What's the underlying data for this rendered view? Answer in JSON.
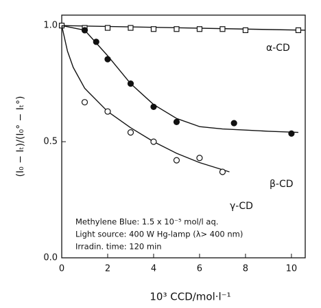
{
  "chart_data": {
    "type": "scatter",
    "x_label": "10³ CCD/mol·l⁻¹",
    "y_label": "(I₀ − Iₜ)/(I₀° − Iₜ°)",
    "xlim": [
      0,
      10.6
    ],
    "ylim": [
      0,
      1.045
    ],
    "xticks": [
      0,
      2,
      4,
      6,
      8,
      10
    ],
    "yticks": [
      {
        "value": 0,
        "label": "0.0"
      },
      0.5,
      {
        "value": 1,
        "label": "1.0"
      }
    ],
    "annotations": [
      "Methylene Blue:  1.5 x 10⁻⁵ mol/l  aq.",
      "Light source: 400 W  Hg-lamp (λ> 400 nm)",
      "Irradin. time:  120 min"
    ],
    "series": [
      {
        "name": "α-CD",
        "marker": "open-square",
        "color": "#111",
        "x": [
          0,
          1,
          2,
          3,
          4,
          5,
          6,
          7,
          8,
          10.3
        ],
        "values": [
          1.0,
          0.99,
          0.99,
          0.99,
          0.985,
          0.985,
          0.985,
          0.985,
          0.98,
          0.98
        ],
        "curve_x": [
          0,
          10.6
        ],
        "curve_values": [
          1.0,
          0.98
        ]
      },
      {
        "name": "β-CD",
        "marker": "filled-circle",
        "color": "#111",
        "x": [
          1,
          1.5,
          2,
          3,
          4,
          5,
          7.5,
          10
        ],
        "values": [
          0.98,
          0.93,
          0.855,
          0.75,
          0.65,
          0.585,
          0.58,
          0.535
        ],
        "curve_x": [
          0,
          1,
          2,
          3,
          4,
          5,
          6,
          7,
          8,
          9,
          10.3
        ],
        "curve_values": [
          1.0,
          0.98,
          0.87,
          0.75,
          0.66,
          0.6,
          0.565,
          0.555,
          0.55,
          0.545,
          0.54
        ]
      },
      {
        "name": "γ-CD",
        "marker": "open-circle",
        "color": "#111",
        "x": [
          1,
          2,
          3,
          4,
          5,
          6,
          7
        ],
        "values": [
          0.67,
          0.63,
          0.54,
          0.5,
          0.42,
          0.43,
          0.37
        ],
        "curve_x": [
          0,
          0.25,
          0.5,
          1,
          2,
          3,
          4,
          5,
          6,
          7.3
        ],
        "curve_values": [
          1.0,
          0.89,
          0.82,
          0.73,
          0.63,
          0.56,
          0.5,
          0.45,
          0.41,
          0.37
        ]
      }
    ]
  }
}
